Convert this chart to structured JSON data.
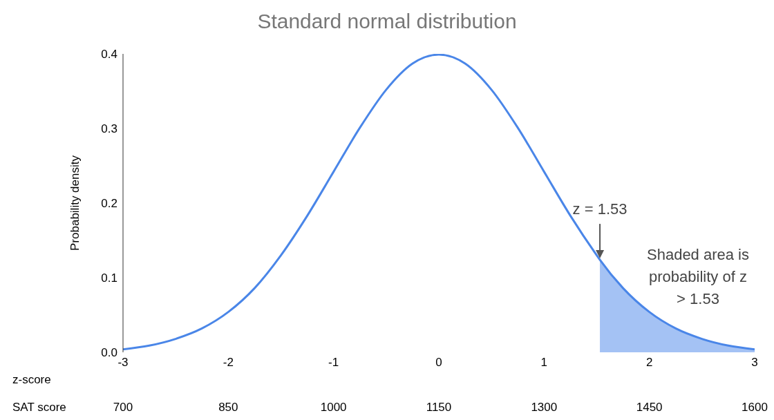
{
  "chart_data": {
    "type": "line",
    "title": "Standard normal distribution",
    "ylabel": "Probability density",
    "xlabel": "z-score",
    "x2label": "SAT score",
    "xlim": [
      -3,
      3
    ],
    "xticks": [
      -3,
      -2,
      -1,
      0,
      1,
      2,
      3
    ],
    "x2lim": [
      700,
      1600
    ],
    "x2ticks": [
      700,
      850,
      1000,
      1150,
      1300,
      1450,
      1600
    ],
    "ylim": [
      0,
      0.4
    ],
    "yticks": [
      {
        "value": 0,
        "label": "0.0"
      },
      {
        "value": 0.1,
        "label": "0.1"
      },
      {
        "value": 0.2,
        "label": "0.2"
      },
      {
        "value": 0.3,
        "label": "0.3"
      },
      {
        "value": 0.4,
        "label": "0.4"
      }
    ],
    "marker": "none",
    "line_style": "solid",
    "series": [
      {
        "type": "area",
        "color": "#a4c2f4",
        "x": [
          1.53,
          1.75,
          2,
          2.25,
          2.5,
          2.75,
          3
        ],
        "values": [
          0.124,
          0.086,
          0.054,
          0.032,
          0.018,
          0.009,
          0.004
        ]
      },
      {
        "color": "#4a86e8",
        "x": [
          -3,
          -2.75,
          -2.5,
          -2.25,
          -2,
          -1.75,
          -1.5,
          -1.25,
          -1,
          -0.75,
          -0.5,
          -0.25,
          0,
          0.25,
          0.5,
          0.75,
          1,
          1.25,
          1.5,
          1.53,
          1.75,
          2,
          2.25,
          2.5,
          2.75,
          3
        ],
        "values": [
          0.004,
          0.009,
          0.018,
          0.032,
          0.054,
          0.086,
          0.13,
          0.183,
          0.242,
          0.301,
          0.352,
          0.387,
          0.399,
          0.387,
          0.352,
          0.301,
          0.242,
          0.183,
          0.13,
          0.124,
          0.086,
          0.054,
          0.032,
          0.018,
          0.009,
          0.004
        ]
      }
    ],
    "annotations": [
      {
        "text": "z = 1.53",
        "x": 1.53,
        "y": 0.124
      },
      "Shaded area is probability of z > 1.53"
    ]
  }
}
